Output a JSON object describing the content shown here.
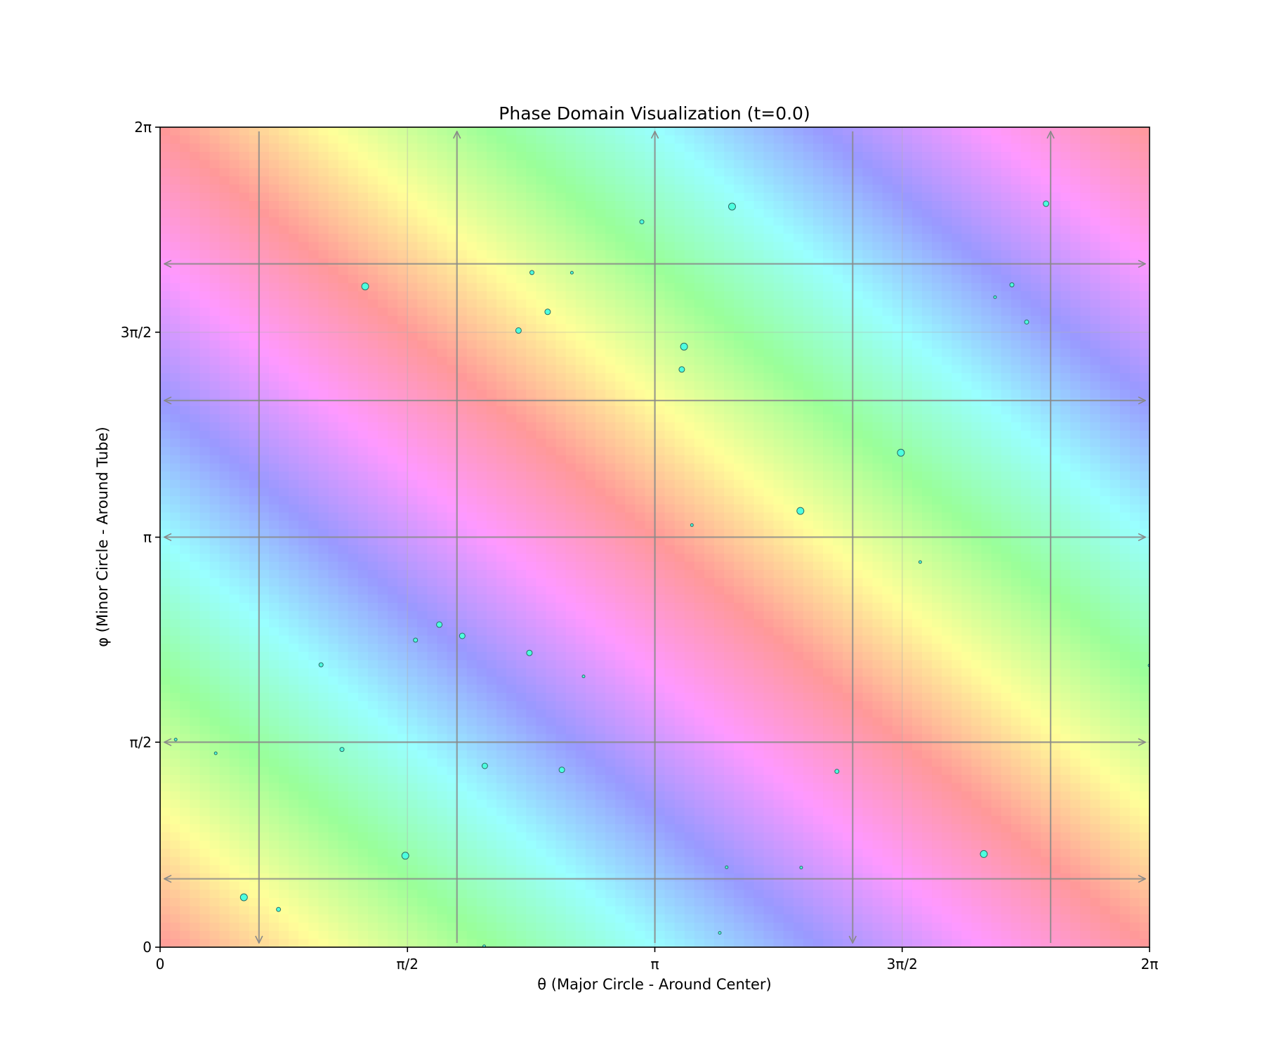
{
  "chart_data": {
    "type": "heatmap",
    "title": "Phase Domain Visualization (t=0.0)",
    "xlabel": "θ (Major Circle - Around Center)",
    "ylabel": "φ (Minor Circle - Around Tube)",
    "xlim": [
      0,
      6.2832
    ],
    "ylim": [
      0,
      6.2832
    ],
    "xticks": [
      0,
      1.5708,
      3.1416,
      4.7124,
      6.2832
    ],
    "yticks": [
      0,
      1.5708,
      3.1416,
      4.7124,
      6.2832
    ],
    "xtick_labels": [
      "0",
      "π/2",
      "π",
      "3π/2",
      "2π"
    ],
    "yticks_labels": [
      "0",
      "π/2",
      "π",
      "3π/2",
      "2π"
    ],
    "grid": true,
    "background": {
      "function": "hue = (θ + φ) mod 2π, rainbow cyclic colormap",
      "palette": [
        "#ff9999",
        "#ffff99",
        "#99ff99",
        "#99ffff",
        "#9999ff",
        "#ff99ff"
      ],
      "resolution": 100
    },
    "flow_arrows": {
      "vertical_theta": [
        0.628,
        1.885,
        3.142,
        4.398,
        5.655
      ],
      "vertical_direction": [
        "down",
        "up",
        "up",
        "down",
        "up"
      ],
      "horizontal_phi": [
        0.524,
        1.571,
        3.142,
        4.189,
        5.236
      ],
      "horizontal_direction": "both",
      "color": "#888888"
    },
    "points": {
      "color": "#4dffdf",
      "edge_color": "#2a6b64",
      "theta": [
        0.099,
        0.353,
        0.532,
        0.752,
        1.022,
        1.155,
        1.302,
        1.557,
        1.622,
        1.773,
        1.919,
        2.058,
        2.062,
        2.276,
        2.345,
        2.361,
        2.461,
        2.551,
        2.615,
        2.689,
        3.059,
        3.327,
        3.313,
        3.377,
        3.554,
        3.598,
        3.632,
        4.066,
        4.071,
        4.298,
        4.704,
        4.827,
        5.231,
        5.302,
        5.409,
        5.503,
        5.626,
        6.283
      ],
      "phi": [
        1.591,
        1.486,
        0.382,
        0.289,
        2.164,
        1.515,
        5.063,
        0.701,
        2.353,
        2.472,
        2.385,
        0.007,
        1.389,
        4.725,
        2.255,
        5.169,
        4.868,
        1.359,
        5.168,
        2.075,
        5.558,
        4.602,
        4.427,
        3.234,
        0.11,
        0.612,
        5.675,
        3.343,
        0.61,
        1.347,
        3.789,
        2.951,
        0.714,
        4.981,
        5.075,
        4.79,
        5.697,
        2.159
      ],
      "size": [
        2,
        2,
        5,
        3,
        3,
        3,
        5,
        5,
        3,
        4,
        4,
        2,
        4,
        4,
        4,
        3,
        4,
        4,
        2,
        2,
        3,
        5,
        4,
        2,
        2,
        2,
        5,
        5,
        2,
        3,
        5,
        2,
        5,
        2,
        3,
        3,
        4,
        2
      ]
    }
  }
}
